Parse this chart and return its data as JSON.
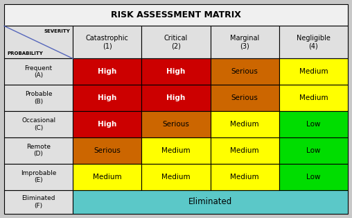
{
  "title": "RISK ASSESSMENT MATRIX",
  "col_headers": [
    "Catastrophic\n(1)",
    "Critical\n(2)",
    "Marginal\n(3)",
    "Negligible\n(4)"
  ],
  "row_headers": [
    "Frequent\n(A)",
    "Probable\n(B)",
    "Occasional\n(C)",
    "Remote\n(D)",
    "Improbable\n(E)",
    "Eliminated\n(F)"
  ],
  "severity_label": "SEVERITY",
  "probability_label": "PROBABILITY",
  "matrix": [
    [
      "High",
      "High",
      "Serious",
      "Medium"
    ],
    [
      "High",
      "High",
      "Serious",
      "Medium"
    ],
    [
      "High",
      "Serious",
      "Medium",
      "Low"
    ],
    [
      "Serious",
      "Medium",
      "Medium",
      "Low"
    ],
    [
      "Medium",
      "Medium",
      "Medium",
      "Low"
    ],
    [
      "Eliminated",
      "Eliminated",
      "Eliminated",
      "Eliminated"
    ]
  ],
  "colors": {
    "High": "#CC0000",
    "Serious": "#CC6600",
    "Medium": "#FFFF00",
    "Low": "#00DD00",
    "Eliminated": "#5BC8C8",
    "header_bg": "#E0E0E0",
    "title_bg": "#F0F0F0"
  },
  "text_colors": {
    "High": "#FFFFFF",
    "Serious": "#000000",
    "Medium": "#000000",
    "Low": "#000000",
    "Eliminated": "#000000"
  },
  "diagonal_color": "#5566BB",
  "border_color": "#000000",
  "fig_bg": "#C8C8C8",
  "figsize": [
    5.08,
    3.14
  ],
  "dpi": 100
}
